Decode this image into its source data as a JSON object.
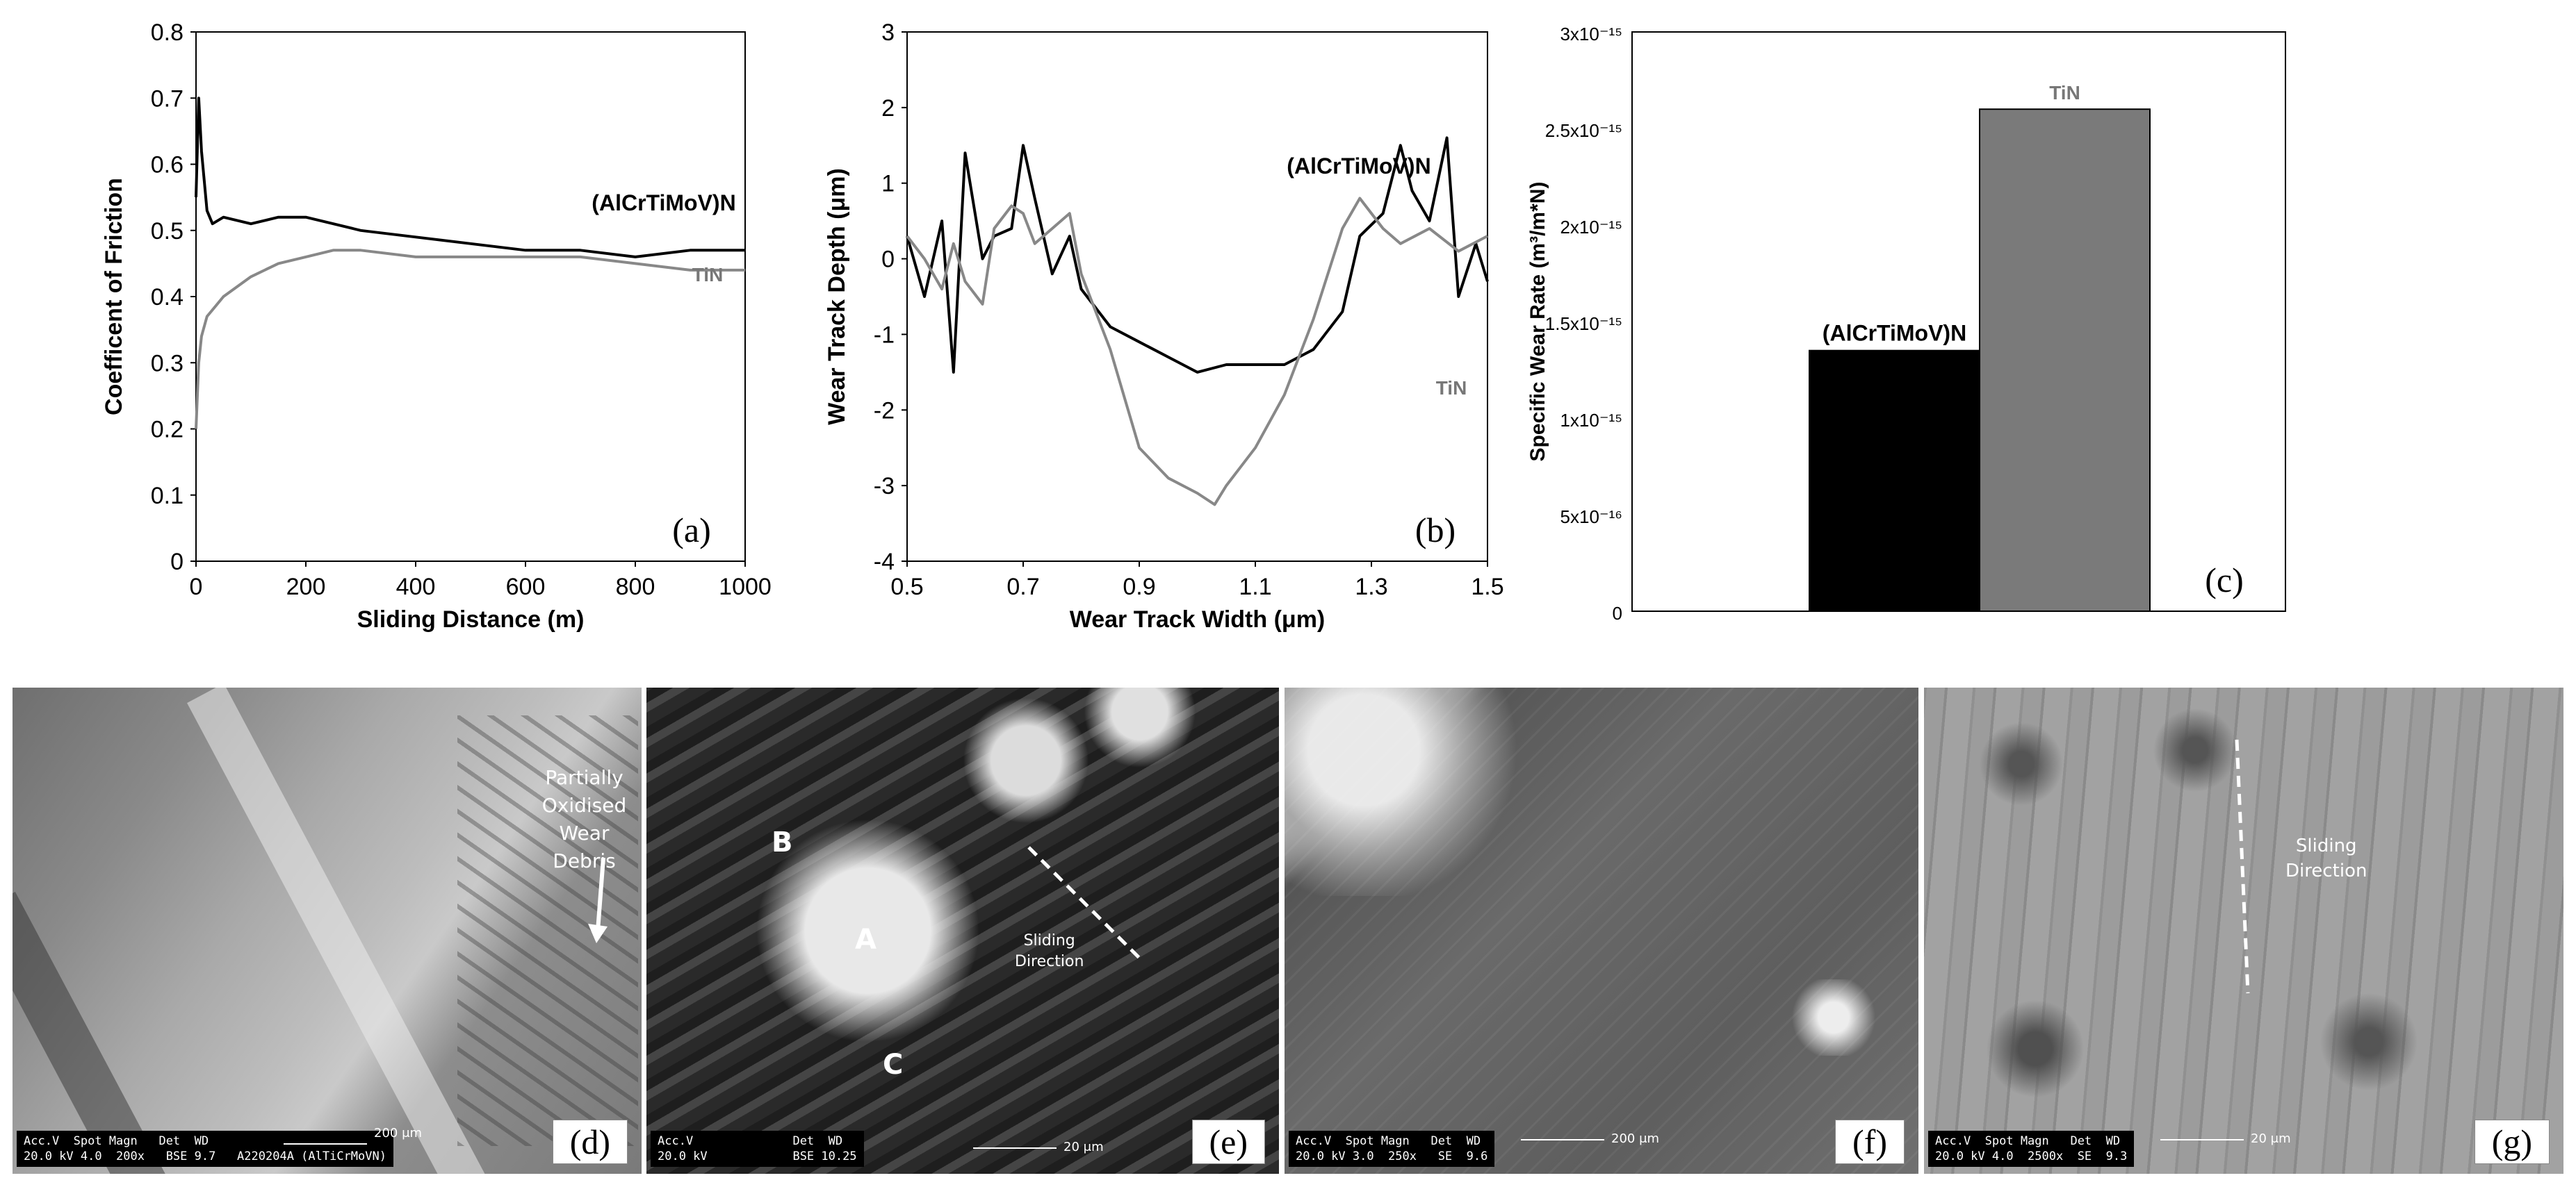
{
  "chart_data": [
    {
      "type": "line",
      "panel_label": "(a)",
      "xlabel": "Sliding Distance (m)",
      "ylabel": "Coefficent of  Friction",
      "xlim": [
        0,
        1000
      ],
      "ylim": [
        0,
        0.8
      ],
      "x_ticks": [
        0,
        200,
        400,
        600,
        800,
        1000
      ],
      "y_ticks": [
        0,
        0.1,
        0.2,
        0.3,
        0.4,
        0.5,
        0.6,
        0.7,
        0.8
      ],
      "series": [
        {
          "name": "(AlCrTiMoV)N",
          "color": "#000000",
          "x": [
            0,
            5,
            10,
            20,
            30,
            50,
            100,
            150,
            200,
            250,
            300,
            400,
            500,
            600,
            700,
            800,
            900,
            1000
          ],
          "y": [
            0.55,
            0.7,
            0.62,
            0.53,
            0.51,
            0.52,
            0.51,
            0.52,
            0.52,
            0.51,
            0.5,
            0.49,
            0.48,
            0.47,
            0.47,
            0.46,
            0.47,
            0.47
          ]
        },
        {
          "name": "TiN",
          "color": "#888888",
          "x": [
            0,
            5,
            10,
            20,
            30,
            50,
            100,
            150,
            200,
            250,
            300,
            400,
            500,
            600,
            700,
            800,
            900,
            1000
          ],
          "y": [
            0.2,
            0.3,
            0.34,
            0.37,
            0.38,
            0.4,
            0.43,
            0.45,
            0.46,
            0.47,
            0.47,
            0.46,
            0.46,
            0.46,
            0.46,
            0.45,
            0.44,
            0.44
          ]
        }
      ]
    },
    {
      "type": "line",
      "panel_label": "(b)",
      "xlabel": "Wear Track Width (μm)",
      "ylabel": "Wear Track Depth (μm)",
      "xlim": [
        0.5,
        1.5
      ],
      "ylim": [
        -4,
        3
      ],
      "x_ticks": [
        0.5,
        0.7,
        0.9,
        1.1,
        1.3,
        1.5
      ],
      "y_ticks": [
        -4,
        -3,
        -2,
        -1,
        0,
        1,
        2,
        3
      ],
      "series": [
        {
          "name": "(AlCrTiMoV)N",
          "color": "#000000",
          "x": [
            0.5,
            0.53,
            0.56,
            0.58,
            0.6,
            0.63,
            0.65,
            0.68,
            0.7,
            0.72,
            0.75,
            0.78,
            0.8,
            0.85,
            0.9,
            0.95,
            1.0,
            1.05,
            1.1,
            1.15,
            1.2,
            1.25,
            1.28,
            1.32,
            1.35,
            1.37,
            1.4,
            1.43,
            1.45,
            1.48,
            1.5
          ],
          "y": [
            0.3,
            -0.5,
            0.5,
            -1.5,
            1.4,
            0.0,
            0.3,
            0.4,
            1.5,
            0.8,
            -0.2,
            0.3,
            -0.4,
            -0.9,
            -1.1,
            -1.3,
            -1.5,
            -1.4,
            -1.4,
            -1.4,
            -1.2,
            -0.7,
            0.3,
            0.6,
            1.5,
            0.9,
            0.5,
            1.6,
            -0.5,
            0.2,
            -0.3
          ]
        },
        {
          "name": "TiN",
          "color": "#888888",
          "x": [
            0.5,
            0.53,
            0.56,
            0.58,
            0.6,
            0.63,
            0.65,
            0.68,
            0.7,
            0.72,
            0.75,
            0.78,
            0.8,
            0.85,
            0.9,
            0.95,
            1.0,
            1.03,
            1.05,
            1.1,
            1.15,
            1.2,
            1.25,
            1.28,
            1.32,
            1.35,
            1.4,
            1.45,
            1.5
          ],
          "y": [
            0.3,
            0.0,
            -0.4,
            0.2,
            -0.3,
            -0.6,
            0.4,
            0.7,
            0.6,
            0.2,
            0.4,
            0.6,
            -0.2,
            -1.2,
            -2.5,
            -2.9,
            -3.1,
            -3.25,
            -3.0,
            -2.5,
            -1.8,
            -0.8,
            0.4,
            0.8,
            0.4,
            0.2,
            0.4,
            0.1,
            0.3
          ]
        }
      ]
    },
    {
      "type": "bar",
      "panel_label": "(c)",
      "ylabel": "Specific Wear Rate (m³/m*N)",
      "ylim": [
        0,
        3e-15
      ],
      "y_ticks": [
        "0",
        "5x10⁻¹⁶",
        "1x10⁻¹⁵",
        "1.5x10⁻¹⁵",
        "2x10⁻¹⁵",
        "2.5x10⁻¹⁵",
        "3x10⁻¹⁵"
      ],
      "categories": [
        "(AlCrTiMoV)N",
        "TiN"
      ],
      "values": [
        1.35e-15,
        2.6e-15
      ],
      "colors": [
        "#000000",
        "#7a7a7a"
      ]
    }
  ],
  "micrographs": [
    {
      "panel_label": "(d)",
      "databar": [
        "Acc.V  Spot Magn   Det  WD",
        "20.0 kV 4.0  200x   BSE 9.7   A220204A (AlTiCrMoVN)"
      ],
      "scale_label": "200 μm",
      "annotation": [
        "Partially",
        "Oxidised",
        "Wear Debris"
      ]
    },
    {
      "panel_label": "(e)",
      "databar": [
        "Acc.V              Det  WD",
        "20.0 kV            BSE 10.25"
      ],
      "scale_label": "20 μm",
      "regions": [
        "A",
        "B",
        "C"
      ],
      "annotation": [
        "Sliding",
        "Direction"
      ]
    },
    {
      "panel_label": "(f)",
      "databar": [
        "Acc.V  Spot Magn   Det  WD",
        "20.0 kV 3.0  250x   SE  9.6"
      ],
      "scale_label": "200 μm"
    },
    {
      "panel_label": "(g)",
      "databar": [
        "Acc.V  Spot Magn   Det  WD",
        "20.0 kV 4.0  2500x  SE  9.3"
      ],
      "scale_label": "20 μm",
      "annotation": [
        "Sliding",
        "Direction"
      ]
    }
  ]
}
